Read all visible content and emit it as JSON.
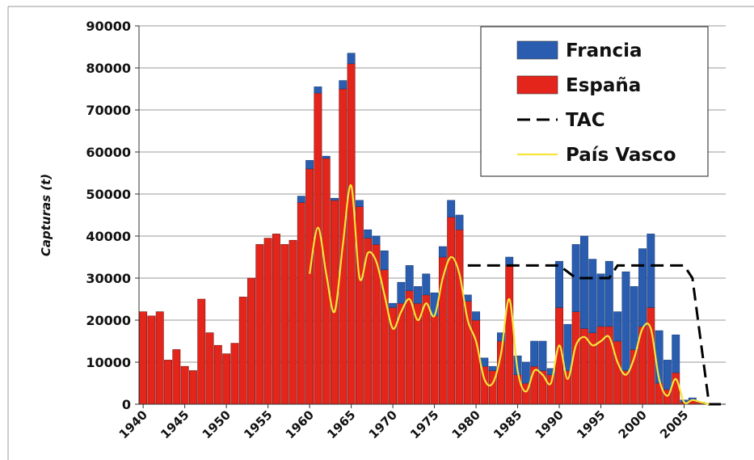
{
  "chart_data": {
    "type": "bar",
    "stacked": true,
    "ylabel": "Capturas (t)",
    "x": [
      1940,
      1941,
      1942,
      1943,
      1944,
      1945,
      1946,
      1947,
      1948,
      1949,
      1950,
      1951,
      1952,
      1953,
      1954,
      1955,
      1956,
      1957,
      1958,
      1959,
      1960,
      1961,
      1962,
      1963,
      1964,
      1965,
      1966,
      1967,
      1968,
      1969,
      1970,
      1971,
      1972,
      1973,
      1974,
      1975,
      1976,
      1977,
      1978,
      1979,
      1980,
      1981,
      1982,
      1983,
      1984,
      1985,
      1986,
      1987,
      1988,
      1989,
      1990,
      1991,
      1992,
      1993,
      1994,
      1995,
      1996,
      1997,
      1998,
      1999,
      2000,
      2001,
      2002,
      2003,
      2004,
      2005,
      2006,
      2007,
      2008
    ],
    "series": [
      {
        "name": "Francia",
        "color": "#2a5db0",
        "values": [
          0,
          0,
          0,
          0,
          0,
          0,
          0,
          0,
          0,
          0,
          0,
          0,
          0,
          0,
          0,
          0,
          0,
          0,
          0,
          1500,
          2000,
          1500,
          500,
          500,
          2000,
          2500,
          1500,
          2000,
          2000,
          4500,
          1000,
          5000,
          6000,
          4000,
          5000,
          5500,
          2500,
          4000,
          3500,
          1500,
          2000,
          2000,
          1000,
          2000,
          2000,
          4500,
          5000,
          6000,
          7000,
          1500,
          11000,
          11000,
          16000,
          22000,
          17500,
          12500,
          15500,
          7000,
          23500,
          15000,
          18500,
          17500,
          12500,
          7000,
          9000,
          500,
          500,
          0,
          0
        ]
      },
      {
        "name": "España",
        "color": "#e3251b",
        "values": [
          22000,
          21000,
          22000,
          10500,
          13000,
          9000,
          8000,
          25000,
          17000,
          14000,
          12000,
          14500,
          25500,
          30000,
          38000,
          39500,
          40500,
          38000,
          39000,
          48000,
          56000,
          74000,
          58500,
          48500,
          75000,
          81000,
          47000,
          39500,
          38000,
          32000,
          23000,
          24000,
          27000,
          24000,
          26000,
          21000,
          35000,
          44500,
          41500,
          24500,
          20000,
          9000,
          8000,
          15000,
          33000,
          7000,
          5000,
          9000,
          8000,
          7000,
          23000,
          8000,
          22000,
          18000,
          17000,
          18500,
          18500,
          15000,
          8000,
          13000,
          18500,
          23000,
          5000,
          3500,
          7500,
          500,
          1000,
          500,
          200
        ]
      }
    ],
    "lines": [
      {
        "name": "TAC",
        "color": "#000000",
        "dashed": true,
        "x": [
          1979,
          1990,
          1992,
          1996,
          1997,
          2005,
          2006,
          2008,
          2010
        ],
        "values": [
          33000,
          33000,
          30000,
          30000,
          33000,
          33000,
          30000,
          0,
          0
        ]
      },
      {
        "name": "País Vasco",
        "color": "#f5e53a",
        "dashed": false,
        "x": [
          1960,
          1961,
          1962,
          1963,
          1964,
          1965,
          1966,
          1967,
          1968,
          1969,
          1970,
          1971,
          1972,
          1973,
          1974,
          1975,
          1976,
          1977,
          1978,
          1979,
          1980,
          1981,
          1982,
          1983,
          1984,
          1985,
          1986,
          1987,
          1988,
          1989,
          1990,
          1991,
          1992,
          1993,
          1994,
          1995,
          1996,
          1997,
          1998,
          1999,
          2000,
          2001,
          2002,
          2003,
          2004,
          2005,
          2006,
          2007,
          2008
        ],
        "values": [
          31000,
          42000,
          31000,
          22000,
          38000,
          52000,
          30000,
          36000,
          34000,
          26000,
          18000,
          22000,
          25000,
          20000,
          24000,
          21000,
          30000,
          35000,
          31000,
          20000,
          15000,
          6000,
          5000,
          12000,
          25000,
          8000,
          3000,
          8000,
          7000,
          5000,
          14000,
          6000,
          14000,
          16000,
          14000,
          15000,
          16000,
          10000,
          7000,
          11000,
          18000,
          18000,
          6000,
          2000,
          6000,
          500,
          1000,
          500,
          0
        ]
      }
    ],
    "xlim": [
      1939.5,
      2010
    ],
    "xticks": [
      1940,
      1945,
      1950,
      1955,
      1960,
      1965,
      1970,
      1975,
      1980,
      1985,
      1990,
      1995,
      2000,
      2005
    ],
    "ylim": [
      0,
      90000
    ],
    "yticks": [
      0,
      10000,
      20000,
      30000,
      40000,
      50000,
      60000,
      70000,
      80000,
      90000
    ],
    "grid": true,
    "legend": "top-right"
  }
}
